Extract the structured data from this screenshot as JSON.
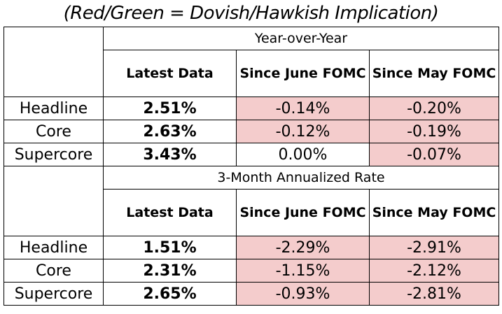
{
  "title": "(Red/Green = Dovish/Hawkish Implication)",
  "colors": {
    "dovish": "#f4cccc"
  },
  "columns": {
    "latest": "Latest Data",
    "since_june": "Since June FOMC",
    "since_may": "Since May FOMC"
  },
  "sections": [
    {
      "label": "Year-over-Year",
      "rows": [
        {
          "name": "Headline",
          "latest": "2.51%",
          "june": "-0.14%",
          "may": "-0.20%"
        },
        {
          "name": "Core",
          "latest": "2.63%",
          "june": "-0.12%",
          "may": "-0.19%"
        },
        {
          "name": "Supercore",
          "latest": "3.43%",
          "june": "0.00%",
          "may": "-0.07%"
        }
      ]
    },
    {
      "label": "3-Month Annualized Rate",
      "rows": [
        {
          "name": "Headline",
          "latest": "1.51%",
          "june": "-2.29%",
          "may": "-2.91%"
        },
        {
          "name": "Core",
          "latest": "2.31%",
          "june": "-1.15%",
          "may": "-2.12%"
        },
        {
          "name": "Supercore",
          "latest": "2.65%",
          "june": "-0.93%",
          "may": "-2.81%"
        }
      ]
    }
  ]
}
